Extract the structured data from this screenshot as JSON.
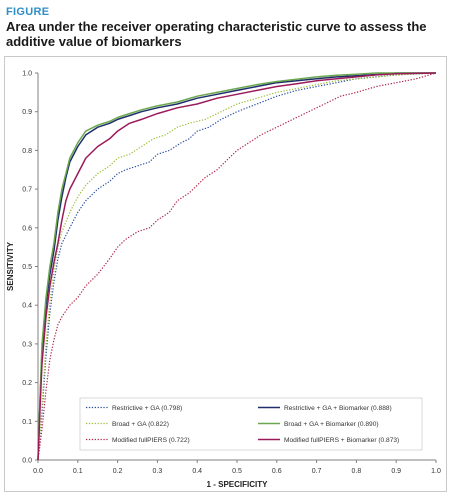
{
  "figure": {
    "tag": "FIGURE",
    "title": "Area under the receiver operating characteristic curve to assess the additive value of biomarkers"
  },
  "chart_data": {
    "type": "line",
    "xlabel": "1 - SPECIFICITY",
    "ylabel": "SENSITIVITY",
    "xlim": [
      0,
      1
    ],
    "ylim": [
      0,
      1
    ],
    "xticks": [
      "0.0",
      "0.1",
      "0.2",
      "0.3",
      "0.4",
      "0.5",
      "0.6",
      "0.7",
      "0.8",
      "0.9",
      "1.0"
    ],
    "yticks": [
      "0.0",
      "0.1",
      "0.2",
      "0.3",
      "0.4",
      "0.5",
      "0.6",
      "0.7",
      "0.8",
      "0.9",
      "1.0"
    ],
    "grid": false,
    "legend_position": "bottom",
    "series": [
      {
        "name": "Restrictive + GA  (0.798)",
        "color": "#2b4fa0",
        "style": "dotted",
        "points": [
          [
            0,
            0
          ],
          [
            0.01,
            0.12
          ],
          [
            0.02,
            0.27
          ],
          [
            0.03,
            0.38
          ],
          [
            0.04,
            0.46
          ],
          [
            0.05,
            0.52
          ],
          [
            0.06,
            0.56
          ],
          [
            0.08,
            0.6
          ],
          [
            0.1,
            0.64
          ],
          [
            0.12,
            0.67
          ],
          [
            0.15,
            0.7
          ],
          [
            0.18,
            0.72
          ],
          [
            0.2,
            0.74
          ],
          [
            0.22,
            0.75
          ],
          [
            0.25,
            0.76
          ],
          [
            0.28,
            0.77
          ],
          [
            0.3,
            0.79
          ],
          [
            0.33,
            0.8
          ],
          [
            0.36,
            0.82
          ],
          [
            0.38,
            0.83
          ],
          [
            0.4,
            0.85
          ],
          [
            0.43,
            0.86
          ],
          [
            0.46,
            0.88
          ],
          [
            0.5,
            0.9
          ],
          [
            0.55,
            0.92
          ],
          [
            0.6,
            0.94
          ],
          [
            0.65,
            0.955
          ],
          [
            0.7,
            0.965
          ],
          [
            0.75,
            0.975
          ],
          [
            0.8,
            0.985
          ],
          [
            0.85,
            0.99
          ],
          [
            0.9,
            0.995
          ],
          [
            1.0,
            1.0
          ]
        ]
      },
      {
        "name": "Broad + GA  (0.822)",
        "color": "#9cbf3a",
        "style": "dotted",
        "points": [
          [
            0,
            0
          ],
          [
            0.01,
            0.14
          ],
          [
            0.02,
            0.3
          ],
          [
            0.03,
            0.41
          ],
          [
            0.04,
            0.49
          ],
          [
            0.05,
            0.55
          ],
          [
            0.06,
            0.59
          ],
          [
            0.08,
            0.64
          ],
          [
            0.1,
            0.68
          ],
          [
            0.12,
            0.71
          ],
          [
            0.15,
            0.74
          ],
          [
            0.18,
            0.76
          ],
          [
            0.2,
            0.78
          ],
          [
            0.23,
            0.79
          ],
          [
            0.26,
            0.81
          ],
          [
            0.29,
            0.83
          ],
          [
            0.32,
            0.84
          ],
          [
            0.35,
            0.86
          ],
          [
            0.38,
            0.87
          ],
          [
            0.42,
            0.88
          ],
          [
            0.46,
            0.9
          ],
          [
            0.5,
            0.92
          ],
          [
            0.55,
            0.935
          ],
          [
            0.6,
            0.95
          ],
          [
            0.65,
            0.96
          ],
          [
            0.7,
            0.97
          ],
          [
            0.75,
            0.98
          ],
          [
            0.8,
            0.985
          ],
          [
            0.85,
            0.99
          ],
          [
            0.9,
            0.995
          ],
          [
            1.0,
            1.0
          ]
        ]
      },
      {
        "name": "Modified fullPIERS  (0.722)",
        "color": "#b0284a",
        "style": "dotted",
        "points": [
          [
            0,
            0
          ],
          [
            0.01,
            0.08
          ],
          [
            0.02,
            0.18
          ],
          [
            0.03,
            0.26
          ],
          [
            0.04,
            0.31
          ],
          [
            0.05,
            0.35
          ],
          [
            0.06,
            0.37
          ],
          [
            0.08,
            0.4
          ],
          [
            0.1,
            0.42
          ],
          [
            0.12,
            0.45
          ],
          [
            0.15,
            0.48
          ],
          [
            0.18,
            0.52
          ],
          [
            0.2,
            0.55
          ],
          [
            0.22,
            0.57
          ],
          [
            0.25,
            0.59
          ],
          [
            0.28,
            0.6
          ],
          [
            0.3,
            0.62
          ],
          [
            0.33,
            0.64
          ],
          [
            0.35,
            0.67
          ],
          [
            0.38,
            0.69
          ],
          [
            0.4,
            0.71
          ],
          [
            0.42,
            0.73
          ],
          [
            0.45,
            0.75
          ],
          [
            0.48,
            0.78
          ],
          [
            0.5,
            0.8
          ],
          [
            0.53,
            0.82
          ],
          [
            0.56,
            0.84
          ],
          [
            0.6,
            0.86
          ],
          [
            0.64,
            0.88
          ],
          [
            0.68,
            0.9
          ],
          [
            0.72,
            0.92
          ],
          [
            0.76,
            0.94
          ],
          [
            0.8,
            0.95
          ],
          [
            0.85,
            0.965
          ],
          [
            0.9,
            0.975
          ],
          [
            0.95,
            0.985
          ],
          [
            1.0,
            1.0
          ]
        ]
      },
      {
        "name": "Restrictive + GA + Biomarker  (0.888)",
        "color": "#1f2f6b",
        "style": "solid",
        "points": [
          [
            0,
            0
          ],
          [
            0.005,
            0.15
          ],
          [
            0.01,
            0.28
          ],
          [
            0.02,
            0.4
          ],
          [
            0.03,
            0.48
          ],
          [
            0.04,
            0.54
          ],
          [
            0.05,
            0.62
          ],
          [
            0.06,
            0.68
          ],
          [
            0.07,
            0.73
          ],
          [
            0.08,
            0.77
          ],
          [
            0.1,
            0.81
          ],
          [
            0.12,
            0.84
          ],
          [
            0.15,
            0.86
          ],
          [
            0.18,
            0.87
          ],
          [
            0.2,
            0.88
          ],
          [
            0.23,
            0.89
          ],
          [
            0.26,
            0.9
          ],
          [
            0.3,
            0.91
          ],
          [
            0.35,
            0.92
          ],
          [
            0.4,
            0.935
          ],
          [
            0.45,
            0.945
          ],
          [
            0.5,
            0.955
          ],
          [
            0.55,
            0.965
          ],
          [
            0.6,
            0.975
          ],
          [
            0.65,
            0.98
          ],
          [
            0.7,
            0.985
          ],
          [
            0.75,
            0.99
          ],
          [
            0.8,
            0.993
          ],
          [
            0.85,
            0.996
          ],
          [
            0.9,
            1.0
          ],
          [
            1.0,
            1.0
          ]
        ]
      },
      {
        "name": "Broad + GA + Biomarker  (0.890)",
        "color": "#6aa84f",
        "style": "solid",
        "points": [
          [
            0,
            0
          ],
          [
            0.005,
            0.16
          ],
          [
            0.01,
            0.3
          ],
          [
            0.02,
            0.42
          ],
          [
            0.03,
            0.5
          ],
          [
            0.04,
            0.56
          ],
          [
            0.05,
            0.64
          ],
          [
            0.06,
            0.7
          ],
          [
            0.07,
            0.74
          ],
          [
            0.08,
            0.78
          ],
          [
            0.1,
            0.82
          ],
          [
            0.12,
            0.85
          ],
          [
            0.15,
            0.865
          ],
          [
            0.18,
            0.875
          ],
          [
            0.2,
            0.885
          ],
          [
            0.23,
            0.895
          ],
          [
            0.26,
            0.905
          ],
          [
            0.3,
            0.915
          ],
          [
            0.35,
            0.925
          ],
          [
            0.4,
            0.94
          ],
          [
            0.45,
            0.95
          ],
          [
            0.5,
            0.96
          ],
          [
            0.55,
            0.97
          ],
          [
            0.6,
            0.978
          ],
          [
            0.65,
            0.984
          ],
          [
            0.7,
            0.99
          ],
          [
            0.75,
            0.994
          ],
          [
            0.8,
            0.997
          ],
          [
            0.85,
            1.0
          ],
          [
            1.0,
            1.0
          ]
        ]
      },
      {
        "name": "Modified fullPIERS + Biomarker  (0.873)",
        "color": "#9b1b5a",
        "style": "solid",
        "points": [
          [
            0,
            0
          ],
          [
            0.005,
            0.13
          ],
          [
            0.01,
            0.25
          ],
          [
            0.02,
            0.37
          ],
          [
            0.03,
            0.45
          ],
          [
            0.04,
            0.51
          ],
          [
            0.05,
            0.56
          ],
          [
            0.06,
            0.62
          ],
          [
            0.07,
            0.67
          ],
          [
            0.08,
            0.7
          ],
          [
            0.1,
            0.74
          ],
          [
            0.12,
            0.78
          ],
          [
            0.15,
            0.81
          ],
          [
            0.18,
            0.83
          ],
          [
            0.2,
            0.85
          ],
          [
            0.23,
            0.87
          ],
          [
            0.26,
            0.88
          ],
          [
            0.3,
            0.895
          ],
          [
            0.35,
            0.91
          ],
          [
            0.4,
            0.92
          ],
          [
            0.45,
            0.935
          ],
          [
            0.5,
            0.945
          ],
          [
            0.55,
            0.955
          ],
          [
            0.6,
            0.965
          ],
          [
            0.65,
            0.972
          ],
          [
            0.7,
            0.98
          ],
          [
            0.75,
            0.985
          ],
          [
            0.8,
            0.99
          ],
          [
            0.85,
            0.995
          ],
          [
            0.9,
            0.998
          ],
          [
            1.0,
            1.0
          ]
        ]
      }
    ]
  }
}
